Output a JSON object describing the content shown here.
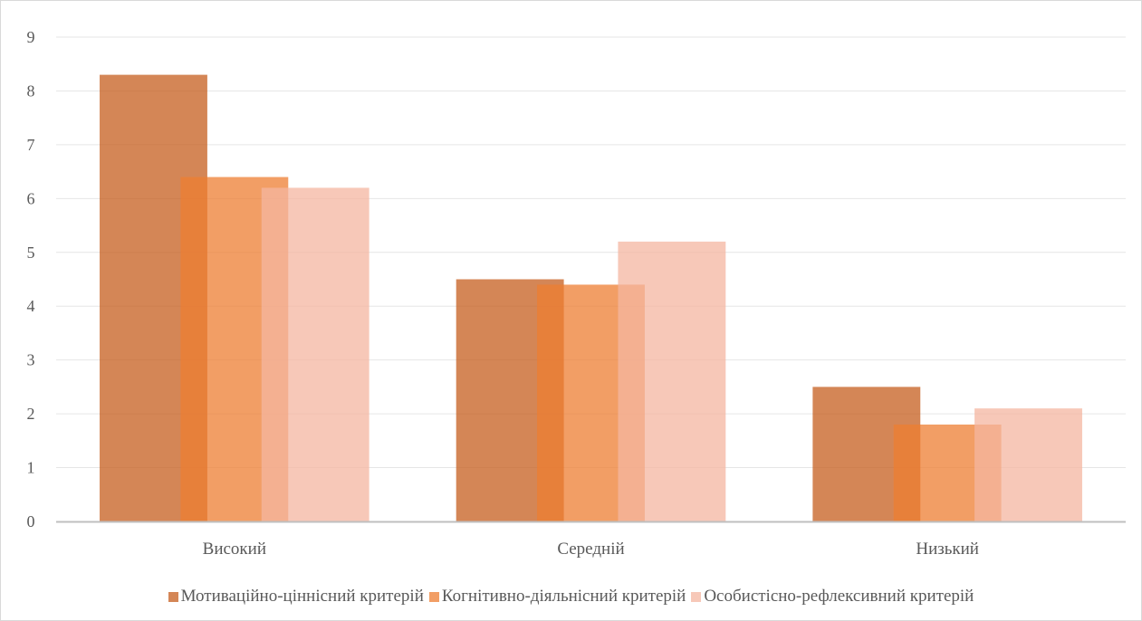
{
  "chart_data": {
    "type": "bar",
    "categories": [
      "Високий",
      "Середній",
      "Низький"
    ],
    "series": [
      {
        "name": "Мотиваційно-ціннісний критерій",
        "values": [
          8.3,
          4.5,
          2.5
        ],
        "color": "#c65d1e"
      },
      {
        "name": "Когнітивно-діяльнісний критерій",
        "values": [
          6.4,
          4.4,
          1.8
        ],
        "color": "#ed7d31"
      },
      {
        "name": "Особистісно-рефлексивний критерій",
        "values": [
          6.2,
          5.2,
          2.1
        ],
        "color": "#f4b6a0"
      }
    ],
    "ylim": [
      0,
      9
    ],
    "yticks": [
      0,
      1,
      2,
      3,
      4,
      5,
      6,
      7,
      8,
      9
    ],
    "grid": true,
    "legend_position": "bottom",
    "title": "",
    "xlabel": "",
    "ylabel": ""
  }
}
